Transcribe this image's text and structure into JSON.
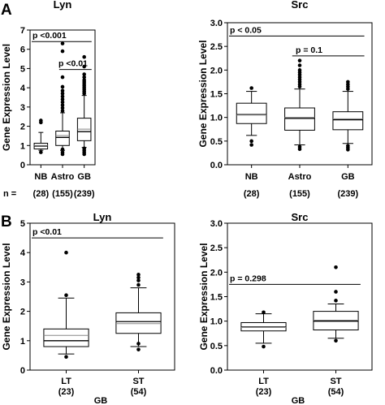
{
  "row_labels": [
    "A",
    "B"
  ],
  "n_prefix": "n =",
  "chart_data": [
    {
      "type": "box",
      "title": "Lyn",
      "ylabel": "Gene Expression Level",
      "ylim": [
        0,
        7
      ],
      "yticks": [
        "0",
        "1",
        "2",
        "3",
        "4",
        "5",
        "6",
        "7"
      ],
      "categories": [
        "NB",
        "Astro",
        "GB"
      ],
      "counts": [
        "(28)",
        "(155)",
        "(239)"
      ],
      "group_label": "",
      "boxes": [
        {
          "whisker_low": 0.75,
          "q1": 0.82,
          "median": 0.97,
          "mean": 1.0,
          "q3": 1.12,
          "whisker_high": 1.68,
          "outliers": [
            0.65,
            2.2,
            2.3
          ]
        },
        {
          "whisker_low": 0.75,
          "q1": 1.0,
          "median": 1.42,
          "mean": 1.52,
          "q3": 1.75,
          "whisker_high": 2.7,
          "outliers": [
            0.55,
            0.65,
            0.8,
            2.8,
            2.95,
            3.1,
            3.25,
            3.4,
            3.55,
            3.7,
            3.85,
            4.05,
            4.55,
            5.9,
            6.3
          ]
        },
        {
          "whisker_low": 0.9,
          "q1": 1.25,
          "median": 1.72,
          "mean": 1.85,
          "q3": 2.42,
          "whisker_high": 3.6,
          "outliers": [
            0.55,
            0.65,
            0.75,
            0.85,
            3.7,
            3.8,
            3.9,
            4.0,
            4.1,
            4.2,
            4.3,
            4.4,
            4.55,
            4.7,
            5.1,
            5.6
          ]
        }
      ],
      "annotations": [
        {
          "text": "p <0.001",
          "from": 0,
          "to": 2,
          "y": 6.4,
          "label_at": 0
        },
        {
          "text": "p <0.01",
          "from": 1,
          "to": 2,
          "y": 4.95,
          "label_at": 1
        }
      ]
    },
    {
      "type": "box",
      "title": "Src",
      "ylabel": "Gene Expression Level",
      "ylim": [
        0,
        3
      ],
      "yticks": [
        "0.0",
        "0.5",
        "1.0",
        "1.5",
        "2.0",
        "2.5",
        "3.0"
      ],
      "categories": [
        "NB",
        "Astro",
        "GB"
      ],
      "counts": [
        "(28)",
        "(155)",
        "(239)"
      ],
      "group_label": "",
      "boxes": [
        {
          "whisker_low": 0.62,
          "q1": 0.87,
          "median": 1.06,
          "mean": 1.05,
          "q3": 1.3,
          "whisker_high": 1.55,
          "outliers": [
            0.42,
            0.5,
            1.62
          ]
        },
        {
          "whisker_low": 0.42,
          "q1": 0.73,
          "median": 0.98,
          "mean": 1.0,
          "q3": 1.2,
          "whisker_high": 1.6,
          "outliers": [
            0.33,
            0.38,
            1.65,
            1.7,
            1.75,
            1.8,
            1.85,
            1.9,
            1.95,
            2.0,
            2.1,
            2.2
          ]
        },
        {
          "whisker_low": 0.45,
          "q1": 0.74,
          "median": 0.95,
          "mean": 0.97,
          "q3": 1.12,
          "whisker_high": 1.55,
          "outliers": [
            0.32,
            0.36,
            0.4,
            1.6,
            1.65,
            1.7,
            1.75
          ]
        }
      ],
      "annotations": [
        {
          "text": "p < 0.05",
          "from": 0,
          "to": 2,
          "y": 2.72,
          "label_at": 0
        },
        {
          "text": "p = 0.1",
          "from": 1,
          "to": 2,
          "y": 2.3,
          "label_at": 1
        }
      ]
    },
    {
      "type": "box",
      "title": "Lyn",
      "ylabel": "Gene Expression Level",
      "ylim": [
        0,
        5
      ],
      "yticks": [
        "0",
        "1",
        "2",
        "3",
        "4",
        "5"
      ],
      "categories": [
        "LT",
        "ST"
      ],
      "counts": [
        "(23)",
        "(54)"
      ],
      "group_label": "GB",
      "boxes": [
        {
          "whisker_low": 0.55,
          "q1": 0.8,
          "median": 1.0,
          "mean": 1.18,
          "q3": 1.4,
          "whisker_high": 2.45,
          "outliers": [
            0.45,
            2.55,
            4.0
          ]
        },
        {
          "whisker_low": 0.8,
          "q1": 1.25,
          "median": 1.65,
          "mean": 1.58,
          "q3": 1.95,
          "whisker_high": 2.8,
          "outliers": [
            0.7,
            0.9,
            2.9,
            3.05,
            3.15,
            3.25
          ]
        }
      ],
      "annotations": [
        {
          "text": "p <0.01",
          "from": 0,
          "to": 1,
          "y": 4.5,
          "label_at": 0
        }
      ]
    },
    {
      "type": "box",
      "title": "Src",
      "ylabel": "Gene Expression Level",
      "ylim": [
        0,
        3
      ],
      "yticks": [
        "0.0",
        "0.5",
        "1.0",
        "1.5",
        "2.0",
        "2.5",
        "3.0"
      ],
      "categories": [
        "LT",
        "ST"
      ],
      "counts": [
        "(23)",
        "(54)"
      ],
      "group_label": "GB",
      "boxes": [
        {
          "whisker_low": 0.55,
          "q1": 0.8,
          "median": 0.88,
          "mean": 0.87,
          "q3": 0.97,
          "whisker_high": 1.15,
          "outliers": [
            0.48,
            1.18
          ]
        },
        {
          "whisker_low": 0.65,
          "q1": 0.82,
          "median": 1.0,
          "mean": 1.02,
          "q3": 1.2,
          "whisker_high": 1.35,
          "outliers": [
            0.6,
            1.42,
            1.6,
            2.1
          ]
        }
      ],
      "annotations": [
        {
          "text": "p = 0.298",
          "from": 0,
          "to": 1,
          "y": 1.75,
          "label_at": 0
        }
      ]
    }
  ]
}
